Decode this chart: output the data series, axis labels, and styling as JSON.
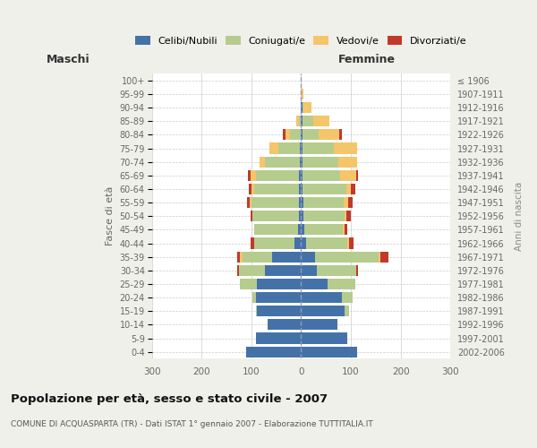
{
  "age_groups": [
    "0-4",
    "5-9",
    "10-14",
    "15-19",
    "20-24",
    "25-29",
    "30-34",
    "35-39",
    "40-44",
    "45-49",
    "50-54",
    "55-59",
    "60-64",
    "65-69",
    "70-74",
    "75-79",
    "80-84",
    "85-89",
    "90-94",
    "95-99",
    "100+"
  ],
  "birth_years": [
    "2002-2006",
    "1997-2001",
    "1992-1996",
    "1987-1991",
    "1982-1986",
    "1977-1981",
    "1972-1976",
    "1967-1971",
    "1962-1966",
    "1957-1961",
    "1952-1956",
    "1947-1951",
    "1942-1946",
    "1937-1941",
    "1932-1936",
    "1927-1931",
    "1922-1926",
    "1917-1921",
    "1912-1916",
    "1907-1911",
    "≤ 1906"
  ],
  "males": {
    "celibi": [
      110,
      90,
      68,
      88,
      90,
      88,
      72,
      58,
      14,
      6,
      5,
      5,
      5,
      5,
      3,
      2,
      0,
      0,
      0,
      0,
      0
    ],
    "coniugati": [
      0,
      0,
      0,
      3,
      8,
      35,
      52,
      60,
      80,
      88,
      92,
      94,
      90,
      86,
      70,
      44,
      22,
      5,
      0,
      0,
      0
    ],
    "vedovi": [
      0,
      0,
      0,
      0,
      0,
      0,
      0,
      5,
      0,
      0,
      0,
      5,
      5,
      10,
      10,
      18,
      10,
      5,
      0,
      0,
      0
    ],
    "divorziati": [
      0,
      0,
      0,
      0,
      0,
      0,
      5,
      5,
      8,
      0,
      5,
      5,
      5,
      5,
      0,
      0,
      5,
      0,
      0,
      0,
      0
    ]
  },
  "females": {
    "nubili": [
      112,
      92,
      72,
      88,
      82,
      54,
      32,
      28,
      10,
      6,
      5,
      4,
      3,
      3,
      3,
      3,
      3,
      3,
      2,
      0,
      0
    ],
    "coniugate": [
      0,
      0,
      0,
      8,
      22,
      55,
      78,
      128,
      82,
      78,
      82,
      82,
      88,
      75,
      72,
      62,
      32,
      22,
      3,
      0,
      0
    ],
    "vedove": [
      0,
      0,
      0,
      0,
      0,
      0,
      0,
      4,
      4,
      4,
      4,
      8,
      8,
      32,
      38,
      48,
      42,
      32,
      15,
      5,
      0
    ],
    "divorziate": [
      0,
      0,
      0,
      0,
      0,
      0,
      5,
      15,
      10,
      4,
      8,
      10,
      10,
      5,
      0,
      0,
      5,
      0,
      0,
      0,
      0
    ]
  },
  "color_celibi": "#4472a8",
  "color_coniugati": "#b5cc8e",
  "color_vedovi": "#f5c56a",
  "color_divorziati": "#c0392b",
  "xlim": 300,
  "title": "Popolazione per età, sesso e stato civile - 2007",
  "subtitle": "COMUNE DI ACQUASPARTA (TR) - Dati ISTAT 1° gennaio 2007 - Elaborazione TUTTITALIA.IT",
  "ylabel_left": "Fasce di età",
  "ylabel_right": "Anni di nascita",
  "bg_color": "#f0f0eb",
  "plot_bg_color": "#ffffff"
}
